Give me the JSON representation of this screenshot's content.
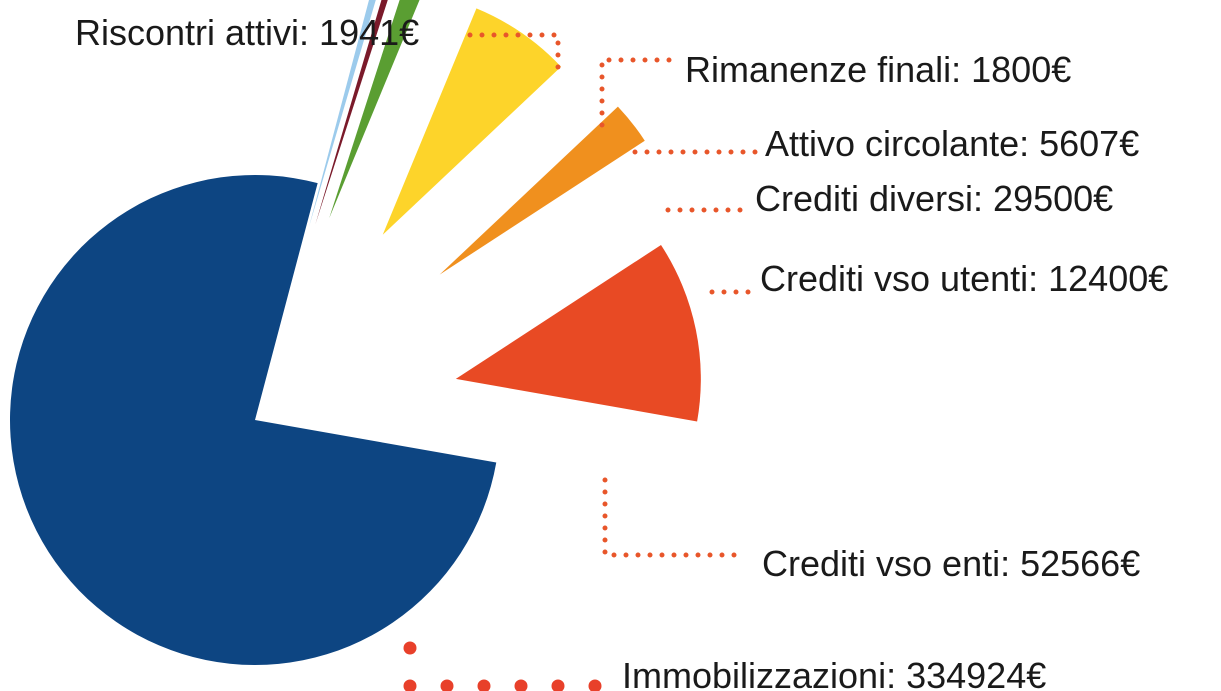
{
  "chart_data": {
    "type": "pie",
    "values": [
      1941,
      1800,
      5607,
      29500,
      12400,
      52566,
      334924
    ],
    "value_labels": [
      "Riscontri attivi: 1941€",
      "Rimanenze finali: 1800€",
      "Attivo circolante: 5607€",
      "Crediti diversi: 29500€",
      "Crediti vso utenti: 12400€",
      "Crediti vso enti: 52566€",
      "Immobilizzazioni: 334924€"
    ],
    "colors": [
      "#9ccbec",
      "#7a1a2a",
      "#5a9e32",
      "#fdd42a",
      "#f0901e",
      "#e84a24",
      "#0d4582"
    ]
  }
}
